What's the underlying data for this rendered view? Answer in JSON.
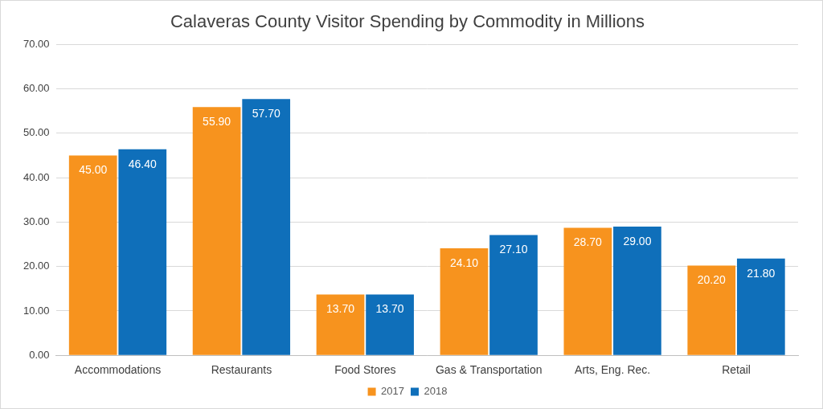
{
  "chart_data": {
    "type": "bar",
    "title": "Calaveras County Visitor Spending by Commodity in Millions",
    "categories": [
      "Accommodations",
      "Restaurants",
      "Food Stores",
      "Gas & Transportation",
      "Arts, Eng. Rec.",
      "Retail"
    ],
    "series": [
      {
        "name": "2017",
        "color": "#f7931e",
        "values": [
          45.0,
          55.9,
          13.7,
          24.1,
          28.7,
          20.2
        ],
        "value_labels": [
          "45.00",
          "55.90",
          "13.70",
          "24.10",
          "28.70",
          "20.20"
        ]
      },
      {
        "name": "2018",
        "color": "#0f6fba",
        "values": [
          46.4,
          57.7,
          13.7,
          27.1,
          29.0,
          21.8
        ],
        "value_labels": [
          "46.40",
          "57.70",
          "13.70",
          "27.10",
          "29.00",
          "21.80"
        ]
      }
    ],
    "ylim": [
      0,
      70
    ],
    "yticks": [
      {
        "value": 0,
        "label": "0.00"
      },
      {
        "value": 10,
        "label": "10.00"
      },
      {
        "value": 20,
        "label": "20.00"
      },
      {
        "value": 30,
        "label": "30.00"
      },
      {
        "value": 40,
        "label": "40.00"
      },
      {
        "value": 50,
        "label": "50.00"
      },
      {
        "value": 60,
        "label": "60.00"
      },
      {
        "value": 70,
        "label": "70.00"
      }
    ],
    "grid": true,
    "legend": "bottom",
    "data_labels": true
  }
}
